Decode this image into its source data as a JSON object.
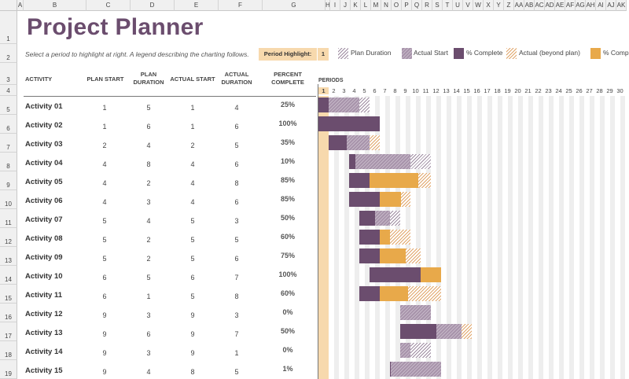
{
  "column_headers": [
    "A",
    "B",
    "C",
    "D",
    "E",
    "F",
    "G",
    "H",
    "I",
    "J",
    "K",
    "L",
    "M",
    "N",
    "O",
    "P",
    "Q",
    "R",
    "S",
    "T",
    "U",
    "V",
    "W",
    "X",
    "Y",
    "Z",
    "AA",
    "AB",
    "AC",
    "AD",
    "AE",
    "AF",
    "AG",
    "AH",
    "AI",
    "AJ",
    "AK"
  ],
  "row_headers": [
    "1",
    "2",
    "3",
    "4",
    "5",
    "6",
    "7",
    "8",
    "9",
    "10",
    "11",
    "12",
    "13",
    "14",
    "15",
    "16",
    "17",
    "18",
    "19"
  ],
  "title": "Project Planner",
  "subtitle": "Select a period to highlight at right.  A legend describing the charting follows.",
  "period_highlight": {
    "label": "Period Highlight:",
    "value": "1"
  },
  "legend": [
    {
      "key": "plan",
      "label": "Plan Duration"
    },
    {
      "key": "actual",
      "label": "Actual Start"
    },
    {
      "key": "complete",
      "label": "% Complete"
    },
    {
      "key": "beyond",
      "label": "Actual (beyond plan)"
    },
    {
      "key": "bcomplete",
      "label": "% Complete (beyond plan)"
    }
  ],
  "headers": {
    "activity": "ACTIVITY",
    "plan_start": "PLAN START",
    "plan_duration": "PLAN DURATION",
    "actual_start": "ACTUAL START",
    "actual_duration": "ACTUAL DURATION",
    "percent_complete": "PERCENT COMPLETE",
    "periods": "PERIODS"
  },
  "periods": [
    "1",
    "2",
    "3",
    "4",
    "5",
    "6",
    "7",
    "8",
    "9",
    "10",
    "11",
    "12",
    "13",
    "14",
    "15",
    "16",
    "17",
    "18",
    "19",
    "20",
    "21",
    "22",
    "23",
    "24",
    "25",
    "26",
    "27",
    "28",
    "29",
    "30"
  ],
  "activities": [
    {
      "name": "Activity 01",
      "plan_start": "1",
      "plan_duration": "5",
      "actual_start": "1",
      "actual_duration": "4",
      "pct": "25%",
      "ps": 1,
      "pd": 5,
      "as": 1,
      "ad": 4,
      "p": 25
    },
    {
      "name": "Activity 02",
      "plan_start": "1",
      "plan_duration": "6",
      "actual_start": "1",
      "actual_duration": "6",
      "pct": "100%",
      "ps": 1,
      "pd": 6,
      "as": 1,
      "ad": 6,
      "p": 100
    },
    {
      "name": "Activity 03",
      "plan_start": "2",
      "plan_duration": "4",
      "actual_start": "2",
      "actual_duration": "5",
      "pct": "35%",
      "ps": 2,
      "pd": 4,
      "as": 2,
      "ad": 5,
      "p": 35
    },
    {
      "name": "Activity 04",
      "plan_start": "4",
      "plan_duration": "8",
      "actual_start": "4",
      "actual_duration": "6",
      "pct": "10%",
      "ps": 4,
      "pd": 8,
      "as": 4,
      "ad": 6,
      "p": 10
    },
    {
      "name": "Activity 05",
      "plan_start": "4",
      "plan_duration": "2",
      "actual_start": "4",
      "actual_duration": "8",
      "pct": "85%",
      "ps": 4,
      "pd": 2,
      "as": 4,
      "ad": 8,
      "p": 85
    },
    {
      "name": "Activity 06",
      "plan_start": "4",
      "plan_duration": "3",
      "actual_start": "4",
      "actual_duration": "6",
      "pct": "85%",
      "ps": 4,
      "pd": 3,
      "as": 4,
      "ad": 6,
      "p": 85
    },
    {
      "name": "Activity 07",
      "plan_start": "5",
      "plan_duration": "4",
      "actual_start": "5",
      "actual_duration": "3",
      "pct": "50%",
      "ps": 5,
      "pd": 4,
      "as": 5,
      "ad": 3,
      "p": 50
    },
    {
      "name": "Activity 08",
      "plan_start": "5",
      "plan_duration": "2",
      "actual_start": "5",
      "actual_duration": "5",
      "pct": "60%",
      "ps": 5,
      "pd": 2,
      "as": 5,
      "ad": 5,
      "p": 60
    },
    {
      "name": "Activity 09",
      "plan_start": "5",
      "plan_duration": "2",
      "actual_start": "5",
      "actual_duration": "6",
      "pct": "75%",
      "ps": 5,
      "pd": 2,
      "as": 5,
      "ad": 6,
      "p": 75
    },
    {
      "name": "Activity 10",
      "plan_start": "6",
      "plan_duration": "5",
      "actual_start": "6",
      "actual_duration": "7",
      "pct": "100%",
      "ps": 6,
      "pd": 5,
      "as": 6,
      "ad": 7,
      "p": 100
    },
    {
      "name": "Activity 11",
      "plan_start": "6",
      "plan_duration": "1",
      "actual_start": "5",
      "actual_duration": "8",
      "pct": "60%",
      "ps": 6,
      "pd": 1,
      "as": 5,
      "ad": 8,
      "p": 60
    },
    {
      "name": "Activity 12",
      "plan_start": "9",
      "plan_duration": "3",
      "actual_start": "9",
      "actual_duration": "3",
      "pct": "0%",
      "ps": 9,
      "pd": 3,
      "as": 9,
      "ad": 3,
      "p": 0
    },
    {
      "name": "Activity 13",
      "plan_start": "9",
      "plan_duration": "6",
      "actual_start": "9",
      "actual_duration": "7",
      "pct": "50%",
      "ps": 9,
      "pd": 6,
      "as": 9,
      "ad": 7,
      "p": 50
    },
    {
      "name": "Activity 14",
      "plan_start": "9",
      "plan_duration": "3",
      "actual_start": "9",
      "actual_duration": "1",
      "pct": "0%",
      "ps": 9,
      "pd": 3,
      "as": 9,
      "ad": 1,
      "p": 0
    },
    {
      "name": "Activity 15",
      "plan_start": "9",
      "plan_duration": "4",
      "actual_start": "8",
      "actual_duration": "5",
      "pct": "1%",
      "ps": 9,
      "pd": 4,
      "as": 8,
      "ad": 5,
      "p": 1
    }
  ],
  "colors": {
    "accent": "#6b4d6e",
    "highlight": "#f7d9ad",
    "complete": "#6b4d6e",
    "beyond": "#e8a94a"
  }
}
